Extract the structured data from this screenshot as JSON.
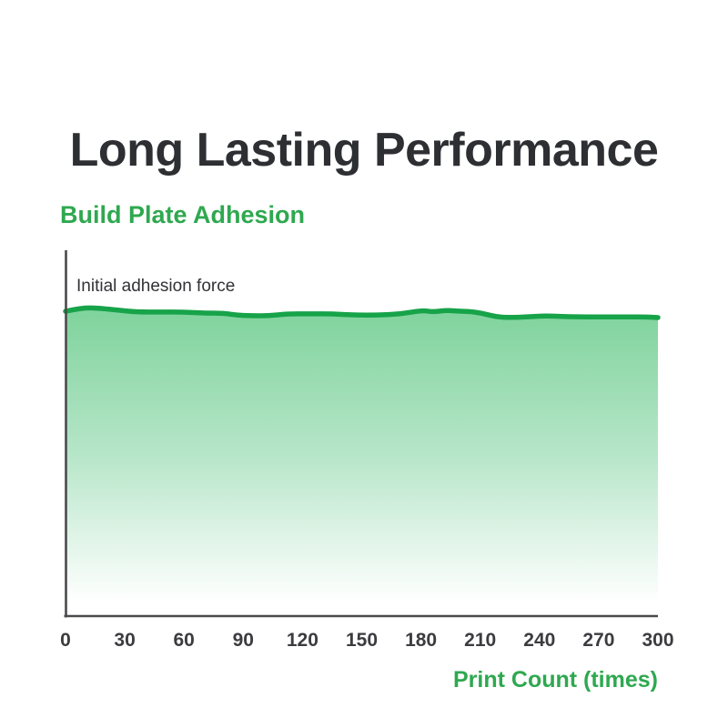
{
  "title": "Long Lasting Performance",
  "chart": {
    "subtitle": "Build Plate Adhesion",
    "annotation": "Initial adhesion force",
    "x_axis_label": "Print Count (times)"
  },
  "colors": {
    "title_text": "#2e2f33",
    "accent_green": "#2fa850",
    "line_green": "#17a349",
    "fill_top": "#7fd39c",
    "fill_mid": "#b7e6c9",
    "fill_bottom": "#ffffff",
    "axis": "#4a4a4e",
    "tick_text": "#3c3c40"
  },
  "chart_data": {
    "type": "area",
    "title": "Build Plate Adhesion",
    "xlabel": "Print Count (times)",
    "ylabel": "",
    "annotation": "Initial adhesion force",
    "x_ticks": [
      0,
      30,
      60,
      90,
      120,
      150,
      180,
      210,
      240,
      270,
      300
    ],
    "xlim": [
      0,
      300
    ],
    "ylim": [
      0,
      1
    ],
    "grid": false,
    "legend": false,
    "series": [
      {
        "name": "Build plate adhesion",
        "x": [
          0,
          4,
          11,
          18,
          27,
          36,
          48,
          59,
          71,
          80,
          86,
          94,
          103,
          112,
          124,
          135,
          147,
          158,
          170,
          181,
          186,
          193,
          200,
          204,
          211,
          218,
          225,
          234,
          243,
          257,
          271,
          285,
          294,
          300
        ],
        "y": [
          0.833,
          0.838,
          0.843,
          0.841,
          0.836,
          0.831,
          0.831,
          0.831,
          0.828,
          0.828,
          0.823,
          0.821,
          0.821,
          0.826,
          0.826,
          0.826,
          0.823,
          0.823,
          0.826,
          0.836,
          0.831,
          0.836,
          0.833,
          0.833,
          0.828,
          0.818,
          0.816,
          0.818,
          0.821,
          0.818,
          0.818,
          0.818,
          0.818,
          0.816
        ]
      }
    ]
  }
}
